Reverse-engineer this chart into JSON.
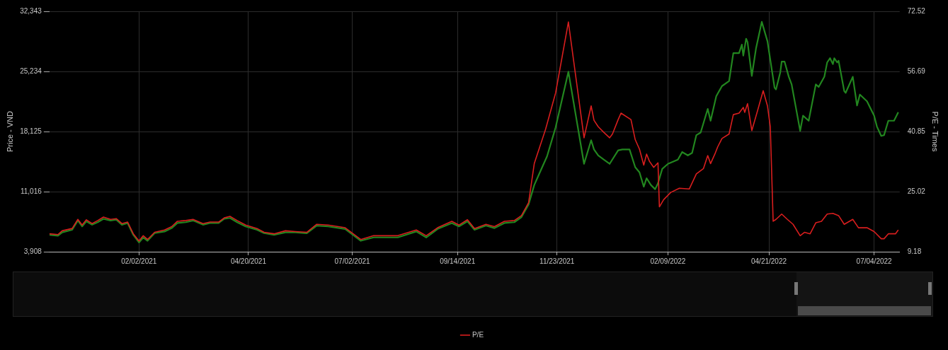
{
  "chart_data": {
    "type": "line",
    "ylabel": "Price - VND",
    "y2label": "P/E - Times",
    "xlim": [
      "2020-12-01",
      "2022-07-22"
    ],
    "xticks": [
      {
        "value": "2021-02-02",
        "label": "02/02/2021"
      },
      {
        "value": "2021-04-20",
        "label": "04/20/2021"
      },
      {
        "value": "2021-07-02",
        "label": "07/02/2021"
      },
      {
        "value": "2021-09-14",
        "label": "09/14/2021"
      },
      {
        "value": "2021-11-23",
        "label": "11/23/2021"
      },
      {
        "value": "2022-02-09",
        "label": "02/09/2022"
      },
      {
        "value": "2022-04-21",
        "label": "04/21/2022"
      },
      {
        "value": "2022-07-04",
        "label": "07/04/2022"
      }
    ],
    "ylim": [
      3908,
      32343
    ],
    "yticks": [
      {
        "value": 3908,
        "label": "3,908"
      },
      {
        "value": 11016,
        "label": "11,016"
      },
      {
        "value": 18125,
        "label": "18,125"
      },
      {
        "value": 25234,
        "label": "25,234"
      },
      {
        "value": 32343,
        "label": "32,343"
      }
    ],
    "y2lim": [
      9.18,
      72.52
    ],
    "y2ticks": [
      9.18,
      25.02,
      40.85,
      56.69,
      72.52
    ],
    "grid": true,
    "legend": "bottom",
    "series": [
      {
        "color": "#22861f",
        "x": [
          "2020-12-01",
          "2020-12-07",
          "2020-12-10",
          "2020-12-17",
          "2020-12-21",
          "2020-12-24",
          "2020-12-27",
          "2020-12-31",
          "2021-01-04",
          "2021-01-08",
          "2021-01-13",
          "2021-01-17",
          "2021-01-21",
          "2021-01-25",
          "2021-01-29",
          "2021-02-02",
          "2021-02-05",
          "2021-02-08",
          "2021-02-13",
          "2021-02-20",
          "2021-02-25",
          "2021-03-01",
          "2021-03-07",
          "2021-03-12",
          "2021-03-19",
          "2021-03-24",
          "2021-03-30",
          "2021-04-03",
          "2021-04-07",
          "2021-04-12",
          "2021-04-18",
          "2021-04-26",
          "2021-05-01",
          "2021-05-08",
          "2021-05-16",
          "2021-05-23",
          "2021-05-31",
          "2021-06-07",
          "2021-06-15",
          "2021-06-27",
          "2021-07-08",
          "2021-07-17",
          "2021-08-03",
          "2021-08-16",
          "2021-08-23",
          "2021-08-31",
          "2021-09-10",
          "2021-09-15",
          "2021-09-21",
          "2021-09-26",
          "2021-10-04",
          "2021-10-10",
          "2021-10-17",
          "2021-10-24",
          "2021-10-29",
          "2021-11-03",
          "2021-11-07",
          "2021-11-16",
          "2021-11-22",
          "2021-12-01",
          "2021-12-12",
          "2021-12-17",
          "2021-12-19",
          "2021-12-22",
          "2021-12-26",
          "2021-12-30",
          "2022-01-05",
          "2022-01-08",
          "2022-01-13",
          "2022-01-17",
          "2022-01-20",
          "2022-01-23",
          "2022-01-25",
          "2022-01-28",
          "2022-01-31",
          "2022-02-02",
          "2022-02-05",
          "2022-02-09",
          "2022-02-16",
          "2022-02-19",
          "2022-02-23",
          "2022-02-26",
          "2022-03-01",
          "2022-03-04",
          "2022-03-09",
          "2022-03-11",
          "2022-03-15",
          "2022-03-19",
          "2022-03-24",
          "2022-03-27",
          "2022-03-31",
          "2022-04-02",
          "2022-04-03",
          "2022-04-05",
          "2022-04-06",
          "2022-04-09",
          "2022-04-12",
          "2022-04-16",
          "2022-04-20",
          "2022-04-25",
          "2022-04-26",
          "2022-04-29",
          "2022-04-30",
          "2022-05-02",
          "2022-05-05",
          "2022-05-07",
          "2022-05-13",
          "2022-05-15",
          "2022-05-19",
          "2022-05-24",
          "2022-05-26",
          "2022-05-30",
          "2022-06-01",
          "2022-06-03",
          "2022-06-05",
          "2022-06-06",
          "2022-06-08",
          "2022-06-09",
          "2022-06-13",
          "2022-06-14",
          "2022-06-19",
          "2022-06-22",
          "2022-06-24",
          "2022-06-29",
          "2022-07-04",
          "2022-07-06",
          "2022-07-09",
          "2022-07-11",
          "2022-07-14",
          "2022-07-18",
          "2022-07-21"
        ],
        "values": [
          5900,
          5800,
          6200,
          6500,
          7600,
          6900,
          7500,
          7100,
          7400,
          7800,
          7600,
          7700,
          7100,
          7300,
          5900,
          5000,
          5600,
          5200,
          6100,
          6300,
          6700,
          7300,
          7400,
          7600,
          7100,
          7300,
          7300,
          7800,
          7900,
          7400,
          6900,
          6500,
          6100,
          5900,
          6200,
          6200,
          6100,
          7000,
          6900,
          6600,
          5200,
          5600,
          5600,
          6300,
          5600,
          6600,
          7300,
          6900,
          7500,
          6500,
          7000,
          6700,
          7300,
          7400,
          8000,
          9500,
          11800,
          15200,
          18600,
          25200,
          14300,
          17100,
          16000,
          15300,
          14800,
          14300,
          15900,
          16000,
          16000,
          13900,
          13300,
          11600,
          12600,
          11800,
          11300,
          12000,
          13700,
          14300,
          14800,
          15700,
          15300,
          15600,
          17700,
          18000,
          20800,
          19400,
          22300,
          23500,
          24100,
          27400,
          27400,
          28400,
          27100,
          29100,
          28700,
          24700,
          28000,
          31100,
          28800,
          23300,
          23100,
          25100,
          26400,
          26400,
          24600,
          23700,
          18200,
          20000,
          19400,
          23700,
          23400,
          24600,
          26300,
          26800,
          26100,
          26800,
          26300,
          26500,
          22900,
          22700,
          24600,
          21200,
          22500,
          21700,
          20000,
          18700,
          17600,
          17700,
          19400,
          19400,
          20400
        ]
      },
      {
        "name": "P/E",
        "color": "#d81e1e",
        "axis": "y2",
        "x": [
          "2020-12-01",
          "2020-12-07",
          "2020-12-10",
          "2020-12-17",
          "2020-12-21",
          "2020-12-24",
          "2020-12-27",
          "2020-12-31",
          "2021-01-04",
          "2021-01-08",
          "2021-01-13",
          "2021-01-17",
          "2021-01-21",
          "2021-01-25",
          "2021-01-29",
          "2021-02-02",
          "2021-02-05",
          "2021-02-08",
          "2021-02-13",
          "2021-02-20",
          "2021-02-25",
          "2021-03-01",
          "2021-03-07",
          "2021-03-12",
          "2021-03-19",
          "2021-03-24",
          "2021-03-30",
          "2021-04-03",
          "2021-04-07",
          "2021-04-12",
          "2021-04-18",
          "2021-04-26",
          "2021-05-01",
          "2021-05-08",
          "2021-05-16",
          "2021-05-23",
          "2021-05-31",
          "2021-06-07",
          "2021-06-15",
          "2021-06-27",
          "2021-07-08",
          "2021-07-17",
          "2021-08-03",
          "2021-08-16",
          "2021-08-23",
          "2021-08-31",
          "2021-09-10",
          "2021-09-15",
          "2021-09-21",
          "2021-09-26",
          "2021-10-04",
          "2021-10-10",
          "2021-10-17",
          "2021-10-24",
          "2021-10-29",
          "2021-11-03",
          "2021-11-07",
          "2021-11-15",
          "2021-11-22",
          "2021-12-01",
          "2021-12-12",
          "2021-12-17",
          "2021-12-19",
          "2021-12-22",
          "2021-12-26",
          "2021-12-30",
          "2022-01-01",
          "2022-01-05",
          "2022-01-07",
          "2022-01-14",
          "2022-01-17",
          "2022-01-20",
          "2022-01-23",
          "2022-01-25",
          "2022-01-27",
          "2022-01-30",
          "2022-02-02",
          "2022-02-03",
          "2022-02-06",
          "2022-02-11",
          "2022-02-17",
          "2022-02-24",
          "2022-03-01",
          "2022-03-06",
          "2022-03-09",
          "2022-03-11",
          "2022-03-14",
          "2022-03-16",
          "2022-03-19",
          "2022-03-24",
          "2022-03-27",
          "2022-03-31",
          "2022-04-03",
          "2022-04-04",
          "2022-04-06",
          "2022-04-09",
          "2022-04-13",
          "2022-04-17",
          "2022-04-20",
          "2022-04-22",
          "2022-04-24",
          "2022-04-26",
          "2022-04-30",
          "2022-05-04",
          "2022-05-08",
          "2022-05-13",
          "2022-05-16",
          "2022-05-20",
          "2022-05-24",
          "2022-05-28",
          "2022-06-01",
          "2022-06-05",
          "2022-06-09",
          "2022-06-13",
          "2022-06-19",
          "2022-06-23",
          "2022-06-29",
          "2022-07-04",
          "2022-07-09",
          "2022-07-11",
          "2022-07-14",
          "2022-07-19",
          "2022-07-21"
        ],
        "values": [
          13.9,
          13.7,
          14.7,
          15.3,
          17.7,
          16.2,
          17.6,
          16.6,
          17.4,
          18.3,
          17.7,
          17.9,
          16.6,
          17.0,
          13.9,
          12.0,
          13.4,
          12.4,
          14.3,
          14.9,
          15.8,
          17.2,
          17.4,
          17.7,
          16.6,
          17.0,
          17.0,
          18.1,
          18.5,
          17.4,
          16.2,
          15.3,
          14.3,
          13.9,
          14.7,
          14.5,
          14.3,
          16.4,
          16.2,
          15.5,
          12.4,
          13.4,
          13.4,
          14.9,
          13.4,
          15.5,
          17.2,
          16.2,
          17.6,
          15.3,
          16.4,
          15.8,
          17.2,
          17.4,
          18.7,
          22.1,
          32.4,
          41.5,
          51.0,
          69.7,
          39.2,
          47.6,
          43.8,
          42.1,
          40.6,
          39.2,
          40.2,
          44.0,
          45.7,
          44.0,
          38.7,
          36.2,
          32.0,
          34.9,
          33.0,
          31.4,
          32.6,
          21.0,
          22.9,
          24.8,
          25.9,
          25.7,
          29.7,
          31.1,
          34.5,
          32.4,
          34.9,
          36.8,
          39.0,
          40.2,
          45.3,
          45.7,
          47.2,
          45.9,
          48.2,
          41.1,
          46.3,
          51.6,
          47.6,
          42.1,
          17.2,
          17.7,
          19.1,
          17.7,
          16.4,
          13.4,
          14.3,
          13.9,
          16.8,
          17.2,
          19.1,
          19.3,
          18.7,
          16.4,
          17.7,
          15.5,
          15.5,
          14.5,
          12.6,
          12.6,
          13.9,
          13.9,
          14.9
        ]
      }
    ]
  }
}
